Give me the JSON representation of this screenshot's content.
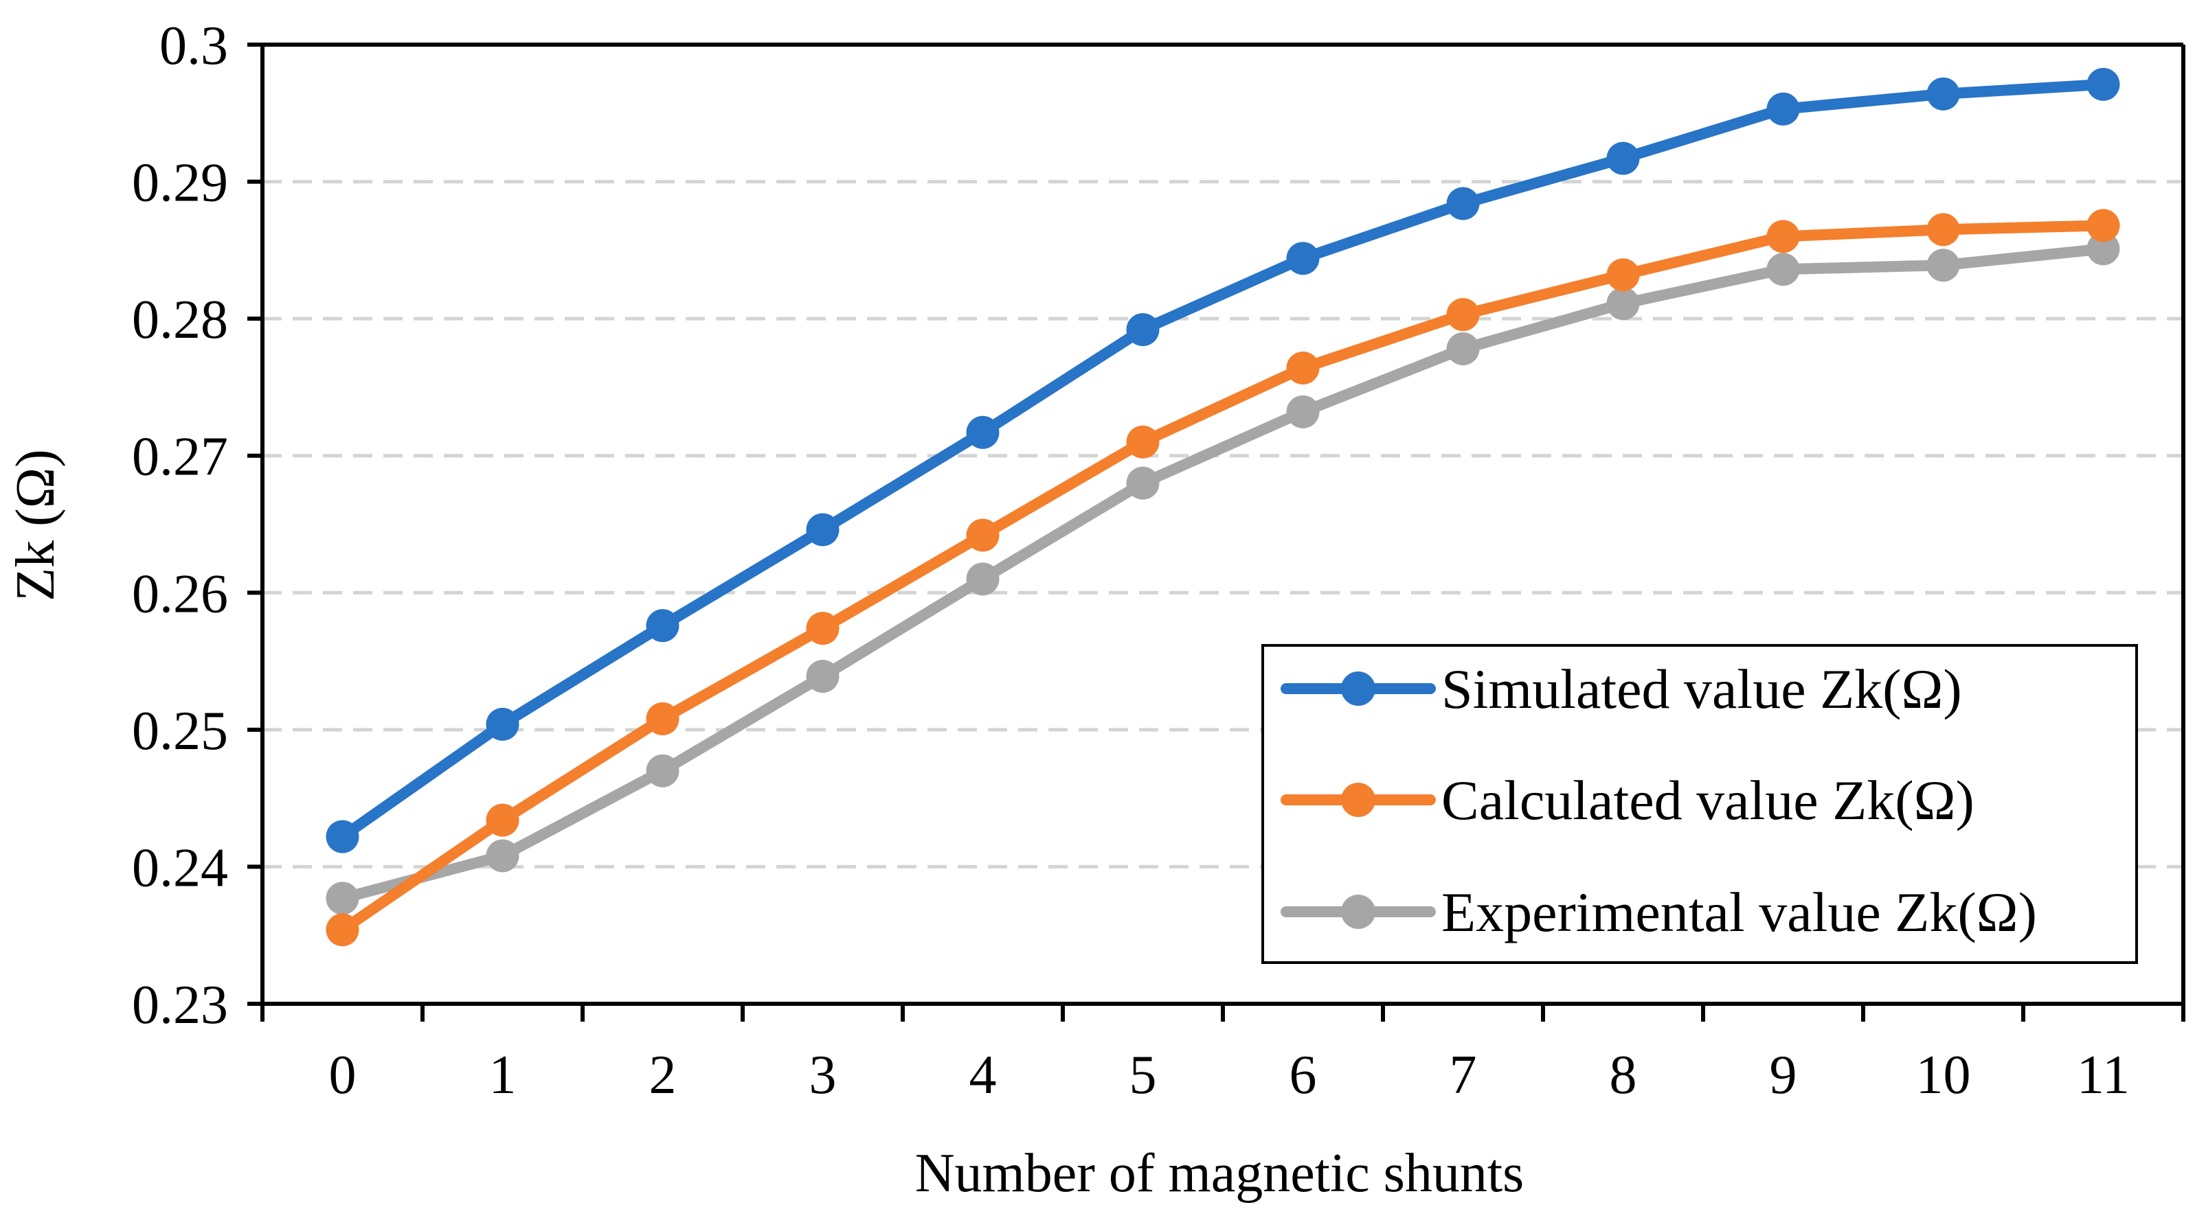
{
  "chart_data": {
    "type": "line",
    "title": "",
    "xlabel": "Number of magnetic shunts",
    "ylabel": "Zk (Ω)",
    "ylim": [
      0.23,
      0.3
    ],
    "yticks": [
      "0.23",
      "0.24",
      "0.25",
      "0.26",
      "0.27",
      "0.28",
      "0.29",
      "0.3"
    ],
    "yticks_values": [
      0.23,
      0.24,
      0.25,
      0.26,
      0.27,
      0.28,
      0.29,
      0.3
    ],
    "categories": [
      "0",
      "1",
      "2",
      "3",
      "4",
      "5",
      "6",
      "7",
      "8",
      "9",
      "10",
      "11"
    ],
    "grid": true,
    "legend_position": "bottom-right",
    "series": [
      {
        "name": "Simulated value Zk(Ω)",
        "color": "#2874c7",
        "values": [
          0.2422,
          0.2504,
          0.2576,
          0.2646,
          0.2717,
          0.2792,
          0.2844,
          0.2884,
          0.2917,
          0.2953,
          0.2964,
          0.2971
        ]
      },
      {
        "name": "Calculated value Zk(Ω)",
        "color": "#f47f2d",
        "values": [
          0.2354,
          0.2434,
          0.2508,
          0.2574,
          0.2642,
          0.271,
          0.2764,
          0.2803,
          0.2832,
          0.286,
          0.2865,
          0.2868
        ]
      },
      {
        "name": "Experimental value Zk(Ω)",
        "color": "#a6a6a6",
        "values": [
          0.2377,
          0.2408,
          0.247,
          0.2539,
          0.261,
          0.268,
          0.2732,
          0.2778,
          0.2811,
          0.2836,
          0.2839,
          0.2851
        ]
      }
    ]
  }
}
